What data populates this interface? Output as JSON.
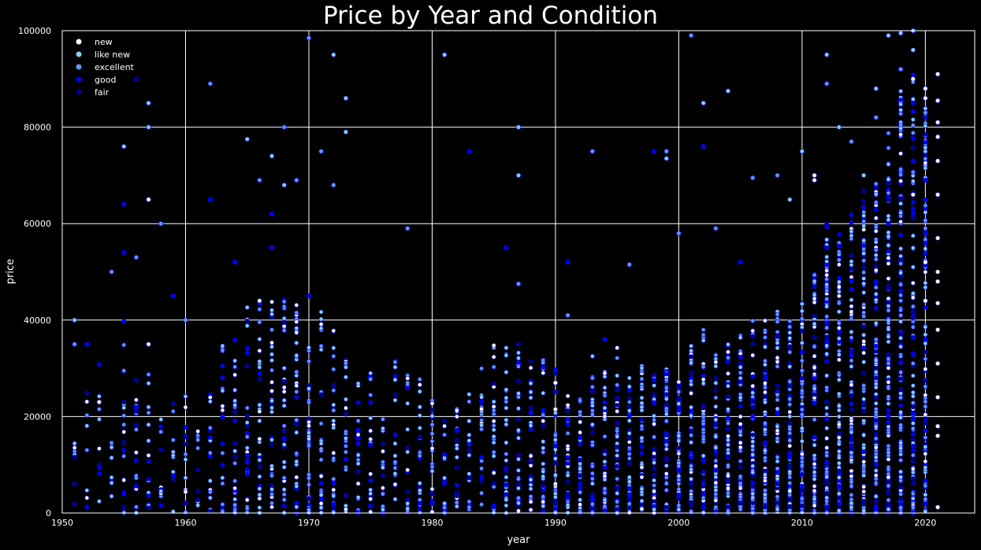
{
  "chart_data": {
    "type": "scatter",
    "title": "Price by Year and Condition",
    "xlabel": "year",
    "ylabel": "price",
    "xlim": [
      1950,
      2024
    ],
    "ylim": [
      0,
      100000
    ],
    "x_ticks": [
      "1950",
      "1960",
      "1970",
      "1980",
      "1990",
      "2000",
      "2010",
      "2020"
    ],
    "y_ticks": [
      "0",
      "20000",
      "40000",
      "60000",
      "80000",
      "100000"
    ],
    "grid": true,
    "legend_position": "top-left",
    "series": [
      {
        "name": "new",
        "color": "#ffffff",
        "points": [
          [
            1953,
            23000
          ],
          [
            1957,
            35000
          ],
          [
            1957,
            65000
          ],
          [
            1966,
            44000
          ],
          [
            1990,
            21500
          ],
          [
            1990,
            27000
          ],
          [
            2011,
            70000
          ],
          [
            2011,
            69000
          ],
          [
            2019,
            90000
          ],
          [
            2019,
            66000
          ],
          [
            2020,
            88000
          ],
          [
            2020,
            86000
          ],
          [
            2020,
            52000
          ],
          [
            2020,
            44000
          ],
          [
            2021,
            91000
          ],
          [
            2021,
            85500
          ],
          [
            2021,
            81000
          ],
          [
            2021,
            78000
          ],
          [
            2021,
            73000
          ],
          [
            2021,
            66000
          ],
          [
            2021,
            57000
          ],
          [
            2021,
            50000
          ],
          [
            2021,
            48000
          ],
          [
            2021,
            43500
          ],
          [
            2021,
            38000
          ],
          [
            2021,
            31000
          ],
          [
            2021,
            24000
          ],
          [
            2021,
            18000
          ],
          [
            2021,
            16000
          ],
          [
            2021,
            1200
          ]
        ]
      },
      {
        "name": "like new",
        "color": "#87ceeb",
        "points": [
          [
            1951,
            40000
          ],
          [
            1955,
            76000
          ],
          [
            1957,
            80000
          ],
          [
            1957,
            85000
          ],
          [
            1965,
            77500
          ],
          [
            1967,
            74000
          ],
          [
            1968,
            68000
          ],
          [
            1972,
            95000
          ],
          [
            1973,
            86000
          ],
          [
            1973,
            79000
          ],
          [
            1981,
            95000
          ],
          [
            1987,
            80000
          ],
          [
            1987,
            70000
          ],
          [
            1999,
            73500
          ],
          [
            2002,
            85000
          ],
          [
            2004,
            87500
          ],
          [
            2009,
            65000
          ],
          [
            2012,
            95000
          ],
          [
            2016,
            88000
          ],
          [
            2017,
            99000
          ],
          [
            2018,
            99500
          ],
          [
            2019,
            96000
          ],
          [
            2019,
            100000
          ],
          [
            2015,
            70000
          ],
          [
            2013,
            80000
          ],
          [
            2010,
            75000
          ]
        ]
      },
      {
        "name": "excellent",
        "color": "#6495ed",
        "points": [
          [
            1951,
            35000
          ],
          [
            1954,
            50000
          ],
          [
            1956,
            53000
          ],
          [
            1958,
            60000
          ],
          [
            1960,
            40000
          ],
          [
            1962,
            89000
          ],
          [
            1966,
            69000
          ],
          [
            1968,
            80000
          ],
          [
            1969,
            69000
          ],
          [
            1970,
            98500
          ],
          [
            1971,
            75000
          ],
          [
            1972,
            68000
          ],
          [
            1978,
            59000
          ],
          [
            1987,
            47500
          ],
          [
            1991,
            41000
          ],
          [
            1993,
            75000
          ],
          [
            1996,
            51500
          ],
          [
            1999,
            75000
          ],
          [
            2000,
            58000
          ],
          [
            2001,
            99000
          ],
          [
            2003,
            59000
          ],
          [
            2006,
            69500
          ],
          [
            2008,
            70000
          ],
          [
            2012,
            89000
          ],
          [
            2014,
            77000
          ],
          [
            2016,
            82000
          ],
          [
            2018,
            92000
          ],
          [
            2020,
            83000
          ]
        ]
      },
      {
        "name": "good",
        "color": "#0000ff",
        "points": [
          [
            1952,
            35000
          ],
          [
            1955,
            64000
          ],
          [
            1955,
            54000
          ],
          [
            1959,
            45000
          ],
          [
            1962,
            65000
          ],
          [
            1964,
            52000
          ],
          [
            1967,
            62000
          ],
          [
            1967,
            55000
          ],
          [
            1970,
            45000
          ],
          [
            1983,
            75000
          ],
          [
            1986,
            55000
          ],
          [
            1991,
            52000
          ],
          [
            1994,
            36000
          ],
          [
            1998,
            75000
          ],
          [
            2002,
            76000
          ],
          [
            2005,
            52000
          ],
          [
            2012,
            55000
          ],
          [
            2017,
            60000
          ],
          [
            2019,
            73000
          ],
          [
            2020,
            69000
          ]
        ]
      },
      {
        "name": "fair",
        "color": "#00008b",
        "points": [
          [
            1956,
            90000
          ],
          [
            1951,
            6000
          ],
          [
            1960,
            2000
          ],
          [
            1970,
            3000
          ],
          [
            1980,
            4000
          ],
          [
            1990,
            2500
          ],
          [
            2000,
            3000
          ],
          [
            2005,
            2000
          ],
          [
            2010,
            1500
          ],
          [
            2015,
            2500
          ]
        ]
      }
    ],
    "dense_columns": [
      {
        "x": 1951,
        "max": 22000,
        "n": 6
      },
      {
        "x": 1952,
        "max": 28000,
        "n": 8
      },
      {
        "x": 1953,
        "max": 32000,
        "n": 10
      },
      {
        "x": 1954,
        "max": 24000,
        "n": 8
      },
      {
        "x": 1955,
        "max": 40000,
        "n": 20
      },
      {
        "x": 1956,
        "max": 38000,
        "n": 18
      },
      {
        "x": 1957,
        "max": 30000,
        "n": 18
      },
      {
        "x": 1958,
        "max": 28000,
        "n": 10
      },
      {
        "x": 1959,
        "max": 25000,
        "n": 10
      },
      {
        "x": 1960,
        "max": 25000,
        "n": 14
      },
      {
        "x": 1961,
        "max": 22000,
        "n": 10
      },
      {
        "x": 1962,
        "max": 33000,
        "n": 16
      },
      {
        "x": 1963,
        "max": 35000,
        "n": 22
      },
      {
        "x": 1964,
        "max": 40000,
        "n": 24
      },
      {
        "x": 1965,
        "max": 45000,
        "n": 30
      },
      {
        "x": 1966,
        "max": 46000,
        "n": 30
      },
      {
        "x": 1967,
        "max": 48000,
        "n": 34
      },
      {
        "x": 1968,
        "max": 45000,
        "n": 32
      },
      {
        "x": 1969,
        "max": 45000,
        "n": 38
      },
      {
        "x": 1970,
        "max": 40000,
        "n": 34
      },
      {
        "x": 1971,
        "max": 43000,
        "n": 30
      },
      {
        "x": 1972,
        "max": 38000,
        "n": 28
      },
      {
        "x": 1973,
        "max": 33000,
        "n": 26
      },
      {
        "x": 1974,
        "max": 30000,
        "n": 22
      },
      {
        "x": 1975,
        "max": 32000,
        "n": 20
      },
      {
        "x": 1976,
        "max": 30000,
        "n": 18
      },
      {
        "x": 1977,
        "max": 33000,
        "n": 20
      },
      {
        "x": 1978,
        "max": 30000,
        "n": 22
      },
      {
        "x": 1979,
        "max": 30000,
        "n": 22
      },
      {
        "x": 1980,
        "max": 26000,
        "n": 20
      },
      {
        "x": 1981,
        "max": 21000,
        "n": 18
      },
      {
        "x": 1982,
        "max": 22000,
        "n": 20
      },
      {
        "x": 1983,
        "max": 25000,
        "n": 22
      },
      {
        "x": 1984,
        "max": 30000,
        "n": 24
      },
      {
        "x": 1985,
        "max": 35000,
        "n": 28
      },
      {
        "x": 1986,
        "max": 35000,
        "n": 30
      },
      {
        "x": 1987,
        "max": 36000,
        "n": 32
      },
      {
        "x": 1988,
        "max": 33000,
        "n": 32
      },
      {
        "x": 1989,
        "max": 33000,
        "n": 34
      },
      {
        "x": 1990,
        "max": 32000,
        "n": 36
      },
      {
        "x": 1991,
        "max": 25000,
        "n": 34
      },
      {
        "x": 1992,
        "max": 24000,
        "n": 34
      },
      {
        "x": 1993,
        "max": 33000,
        "n": 36
      },
      {
        "x": 1994,
        "max": 30000,
        "n": 38
      },
      {
        "x": 1995,
        "max": 35000,
        "n": 40
      },
      {
        "x": 1996,
        "max": 30000,
        "n": 42
      },
      {
        "x": 1997,
        "max": 31000,
        "n": 44
      },
      {
        "x": 1998,
        "max": 30000,
        "n": 46
      },
      {
        "x": 1999,
        "max": 30000,
        "n": 48
      },
      {
        "x": 2000,
        "max": 28000,
        "n": 50
      },
      {
        "x": 2001,
        "max": 35000,
        "n": 52
      },
      {
        "x": 2002,
        "max": 38000,
        "n": 54
      },
      {
        "x": 2003,
        "max": 34000,
        "n": 56
      },
      {
        "x": 2004,
        "max": 36000,
        "n": 58
      },
      {
        "x": 2005,
        "max": 38000,
        "n": 60
      },
      {
        "x": 2006,
        "max": 40000,
        "n": 64
      },
      {
        "x": 2007,
        "max": 40000,
        "n": 68
      },
      {
        "x": 2008,
        "max": 42000,
        "n": 70
      },
      {
        "x": 2009,
        "max": 40000,
        "n": 70
      },
      {
        "x": 2010,
        "max": 45000,
        "n": 76
      },
      {
        "x": 2011,
        "max": 50000,
        "n": 80
      },
      {
        "x": 2012,
        "max": 60000,
        "n": 86
      },
      {
        "x": 2013,
        "max": 58000,
        "n": 90
      },
      {
        "x": 2014,
        "max": 62000,
        "n": 96
      },
      {
        "x": 2015,
        "max": 68000,
        "n": 104
      },
      {
        "x": 2016,
        "max": 70000,
        "n": 110
      },
      {
        "x": 2017,
        "max": 80000,
        "n": 116
      },
      {
        "x": 2018,
        "max": 88000,
        "n": 120
      },
      {
        "x": 2019,
        "max": 92000,
        "n": 120
      },
      {
        "x": 2020,
        "max": 85000,
        "n": 100
      }
    ]
  }
}
